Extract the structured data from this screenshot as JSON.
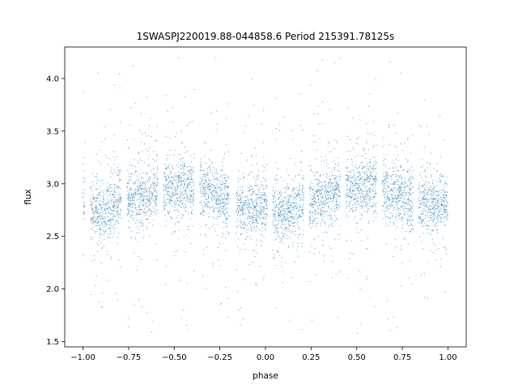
{
  "chart_data": {
    "type": "scatter",
    "title": "1SWASPJ220019.88-044858.6 Period 215391.78125s",
    "xlabel": "phase",
    "ylabel": "flux",
    "xlim": [
      -1.1,
      1.1
    ],
    "ylim": [
      1.45,
      4.3
    ],
    "grid": false,
    "legend": "none",
    "marker_color": "#1f77b4",
    "x_ticks": [
      -1.0,
      -0.75,
      -0.5,
      -0.25,
      0.0,
      0.25,
      0.5,
      0.75,
      1.0
    ],
    "x_tick_labels": [
      "−1.00",
      "−0.75",
      "−0.50",
      "−0.25",
      "0.00",
      "0.25",
      "0.50",
      "0.75",
      "1.00"
    ],
    "y_ticks": [
      1.5,
      2.0,
      2.5,
      3.0,
      3.5,
      4.0
    ],
    "y_tick_labels": [
      "1.5",
      "2.0",
      "2.5",
      "3.0",
      "3.5",
      "4.0"
    ],
    "observed_phase_windows": [
      [
        -1.0,
        -0.99
      ],
      [
        -0.96,
        -0.79
      ],
      [
        -0.76,
        -0.59
      ],
      [
        -0.56,
        -0.39
      ],
      [
        -0.36,
        -0.2
      ],
      [
        -0.16,
        0.01
      ],
      [
        0.04,
        0.21
      ],
      [
        0.24,
        0.41
      ],
      [
        0.44,
        0.61
      ],
      [
        0.64,
        0.81
      ],
      [
        0.84,
        1.0
      ]
    ],
    "flux_profile": {
      "phase": [
        -1.0,
        -0.9,
        -0.75,
        -0.6,
        -0.45,
        -0.3,
        -0.15,
        0.0,
        0.1,
        0.25,
        0.4,
        0.55,
        0.7,
        0.85,
        1.0
      ],
      "median_flux": [
        2.85,
        2.72,
        2.86,
        2.92,
        2.98,
        2.93,
        2.78,
        2.76,
        2.72,
        2.84,
        2.93,
        2.98,
        2.92,
        2.8,
        2.82
      ]
    }
  }
}
